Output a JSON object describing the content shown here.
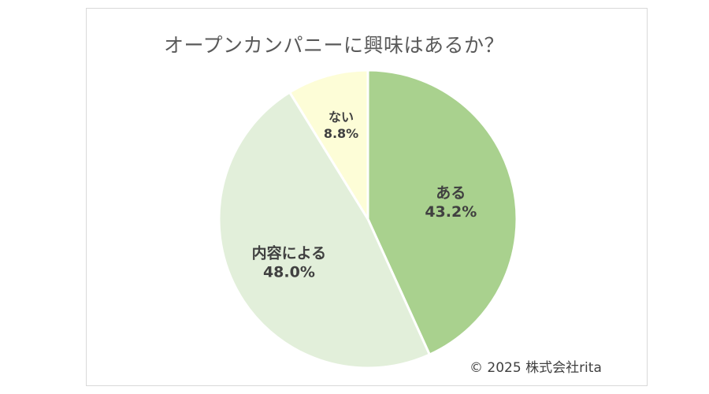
{
  "chart_data": {
    "type": "pie",
    "title": "オープンカンパニーに興味はあるか？",
    "slices": [
      {
        "label": "ある",
        "value": 43.2,
        "value_label": "43.2%",
        "color": "#a9d18e"
      },
      {
        "label": "内容による",
        "value": 48.0,
        "value_label": "48.0%",
        "color": "#e2efda"
      },
      {
        "label": "ない",
        "value": 8.8,
        "value_label": "8.8%",
        "color": "#fdfdd7"
      }
    ],
    "start": "12 o'clock",
    "direction": "clockwise",
    "legend": "none"
  },
  "copyright": "© 2025 株式会社rita"
}
